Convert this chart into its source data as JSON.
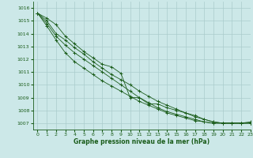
{
  "title": "Graphe pression niveau de la mer (hPa)",
  "bg_color": "#cce8e8",
  "grid_color": "#aacccc",
  "line_color": "#1a5c1a",
  "xlim": [
    -0.5,
    23
  ],
  "ylim": [
    1006.5,
    1016.5
  ],
  "yticks": [
    1007,
    1008,
    1009,
    1010,
    1011,
    1012,
    1013,
    1014,
    1015,
    1016
  ],
  "xticks": [
    0,
    1,
    2,
    3,
    4,
    5,
    6,
    7,
    8,
    9,
    10,
    11,
    12,
    13,
    14,
    15,
    16,
    17,
    18,
    19,
    20,
    21,
    22,
    23
  ],
  "series": [
    [
      1015.6,
      1015.2,
      1014.7,
      1013.8,
      1013.2,
      1012.6,
      1012.1,
      1011.6,
      1011.4,
      1010.9,
      1009.0,
      1009.0,
      1008.5,
      1008.5,
      1008.2,
      1008.0,
      1007.8,
      1007.5,
      1007.3,
      1007.1,
      1007.0,
      1007.0,
      1007.0,
      1007.1
    ],
    [
      1015.6,
      1015.0,
      1014.0,
      1013.5,
      1012.9,
      1012.4,
      1011.8,
      1011.3,
      1010.8,
      1010.4,
      1010.0,
      1009.5,
      1009.1,
      1008.7,
      1008.4,
      1008.1,
      1007.8,
      1007.6,
      1007.3,
      1007.1,
      1007.0,
      1007.0,
      1007.0,
      1007.0
    ],
    [
      1015.6,
      1014.8,
      1013.8,
      1013.1,
      1012.5,
      1012.0,
      1011.5,
      1011.0,
      1010.5,
      1010.0,
      1009.5,
      1009.0,
      1008.6,
      1008.2,
      1007.9,
      1007.7,
      1007.5,
      1007.3,
      1007.1,
      1007.0,
      1007.0,
      1007.0,
      1007.0,
      1007.0
    ],
    [
      1015.6,
      1014.6,
      1013.5,
      1012.5,
      1011.8,
      1011.3,
      1010.8,
      1010.3,
      1009.9,
      1009.5,
      1009.1,
      1008.7,
      1008.4,
      1008.1,
      1007.8,
      1007.6,
      1007.4,
      1007.2,
      1007.1,
      1007.0,
      1007.0,
      1007.0,
      1007.0,
      1007.0
    ]
  ]
}
